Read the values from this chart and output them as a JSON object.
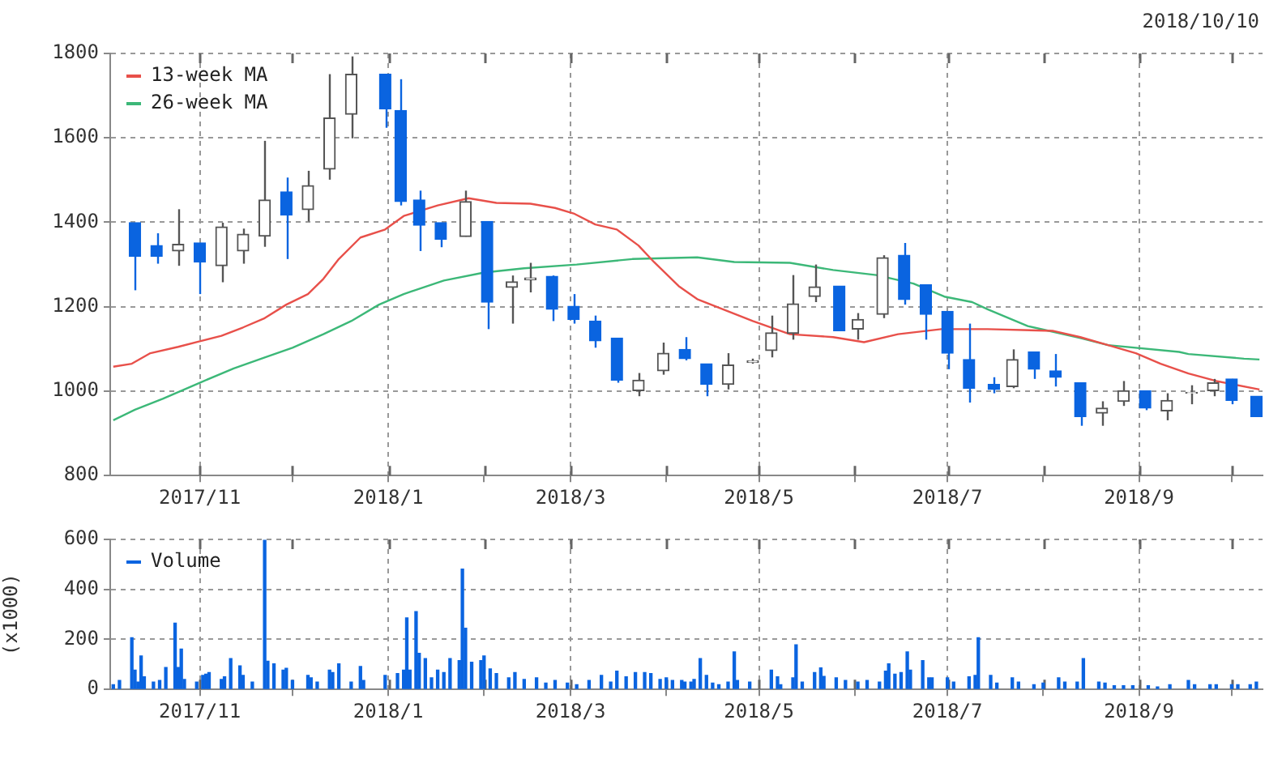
{
  "chart_data": [
    {
      "type": "candlestick",
      "annotations": [
        "2018/10/10"
      ],
      "legend": "top left",
      "grid": true,
      "x": [
        "2017-10-11",
        "2017-10-18",
        "2017-10-25",
        "2017-11-01",
        "2017-11-08",
        "2017-11-15",
        "2017-11-22",
        "2017-11-29",
        "2017-12-06",
        "2017-12-13",
        "2017-12-20",
        "2017-12-31",
        "2018-01-05",
        "2018-01-11",
        "2018-01-18",
        "2018-01-26",
        "2018-02-02",
        "2018-02-10",
        "2018-02-16",
        "2018-02-23",
        "2018-03-02",
        "2018-03-09",
        "2018-03-16",
        "2018-03-23",
        "2018-03-31",
        "2018-04-07",
        "2018-04-14",
        "2018-04-21",
        "2018-04-29",
        "2018-05-05",
        "2018-05-12",
        "2018-05-19",
        "2018-05-27",
        "2018-06-02",
        "2018-06-10",
        "2018-06-17",
        "2018-06-24",
        "2018-07-01",
        "2018-07-08",
        "2018-07-16",
        "2018-07-22",
        "2018-07-29",
        "2018-08-05",
        "2018-08-13",
        "2018-08-20",
        "2018-08-27",
        "2018-09-03",
        "2018-09-10",
        "2018-09-18",
        "2018-09-25",
        "2018-10-01",
        "2018-10-09"
      ],
      "ohlc": [
        [
          1399,
          1399,
          1239,
          1319
        ],
        [
          1345,
          1374,
          1302,
          1319
        ],
        [
          1332,
          1431,
          1297,
          1348
        ],
        [
          1351,
          1351,
          1230,
          1306
        ],
        [
          1297,
          1399,
          1258,
          1389
        ],
        [
          1332,
          1385,
          1302,
          1372
        ],
        [
          1367,
          1593,
          1342,
          1453
        ],
        [
          1472,
          1506,
          1313,
          1417
        ],
        [
          1430,
          1522,
          1402,
          1487
        ],
        [
          1526,
          1751,
          1501,
          1647
        ],
        [
          1656,
          1793,
          1599,
          1751
        ],
        [
          1751,
          1751,
          1624,
          1669
        ],
        [
          1665,
          1739,
          1440,
          1449
        ],
        [
          1453,
          1475,
          1332,
          1393
        ],
        [
          1399,
          1399,
          1341,
          1360
        ],
        [
          1366,
          1475,
          1366,
          1449
        ],
        [
          1402,
          1402,
          1147,
          1211
        ],
        [
          1246,
          1274,
          1160,
          1259
        ],
        [
          1264,
          1304,
          1234,
          1268
        ],
        [
          1272,
          1274,
          1166,
          1194
        ],
        [
          1201,
          1230,
          1160,
          1170
        ],
        [
          1166,
          1179,
          1103,
          1119
        ],
        [
          1126,
          1126,
          1020,
          1026
        ],
        [
          1001,
          1043,
          988,
          1026
        ],
        [
          1048,
          1115,
          1039,
          1090
        ],
        [
          1099,
          1128,
          1073,
          1077
        ],
        [
          1065,
          1065,
          988,
          1016
        ],
        [
          1016,
          1090,
          1004,
          1062
        ],
        [
          1068,
          1077,
          1065,
          1072
        ],
        [
          1096,
          1179,
          1080,
          1138
        ],
        [
          1137,
          1275,
          1122,
          1207
        ],
        [
          1224,
          1300,
          1211,
          1247
        ],
        [
          1249,
          1249,
          1143,
          1143
        ],
        [
          1147,
          1185,
          1122,
          1170
        ],
        [
          1182,
          1322,
          1173,
          1316
        ],
        [
          1322,
          1351,
          1205,
          1217
        ],
        [
          1252,
          1252,
          1122,
          1182
        ],
        [
          1189,
          1189,
          1052,
          1090
        ],
        [
          1075,
          1160,
          973,
          1007
        ],
        [
          1016,
          1033,
          995,
          1004
        ],
        [
          1011,
          1099,
          1007,
          1075
        ],
        [
          1093,
          1093,
          1029,
          1052
        ],
        [
          1048,
          1088,
          1011,
          1033
        ],
        [
          1020,
          1020,
          918,
          940
        ],
        [
          948,
          976,
          918,
          960
        ],
        [
          976,
          1024,
          965,
          1001
        ],
        [
          1001,
          1001,
          955,
          960
        ],
        [
          953,
          995,
          931,
          978
        ],
        [
          995,
          1014,
          969,
          997
        ],
        [
          1001,
          1029,
          988,
          1020
        ],
        [
          1029,
          1029,
          969,
          978
        ],
        [
          988,
          988,
          940,
          940
        ]
      ],
      "series": [
        {
          "type": "line",
          "name": "13-week MA",
          "color": "#e8504a",
          "x": [
            "2017-10-04",
            "2017-10-10",
            "2017-10-16",
            "2017-10-25",
            "2017-11-01",
            "2017-11-08",
            "2017-11-15",
            "2017-11-22",
            "2017-11-29",
            "2017-12-06",
            "2017-12-11",
            "2017-12-16",
            "2017-12-23",
            "2017-12-31",
            "2018-01-06",
            "2018-01-17",
            "2018-01-27",
            "2018-02-05",
            "2018-02-16",
            "2018-02-24",
            "2018-03-02",
            "2018-03-09",
            "2018-03-16",
            "2018-03-23",
            "2018-03-28",
            "2018-04-05",
            "2018-04-11",
            "2018-04-18",
            "2018-04-29",
            "2018-05-11",
            "2018-05-25",
            "2018-06-04",
            "2018-06-15",
            "2018-06-29",
            "2018-07-14",
            "2018-08-04",
            "2018-08-13",
            "2018-08-22",
            "2018-08-31",
            "2018-09-08",
            "2018-09-17",
            "2018-09-26",
            "2018-10-10"
          ],
          "values": [
            1058,
            1065,
            1090,
            1105,
            1118,
            1131,
            1151,
            1173,
            1205,
            1230,
            1266,
            1313,
            1364,
            1383,
            1415,
            1440,
            1457,
            1446,
            1444,
            1434,
            1421,
            1395,
            1383,
            1345,
            1306,
            1249,
            1218,
            1198,
            1166,
            1135,
            1128,
            1116,
            1135,
            1147,
            1147,
            1143,
            1128,
            1109,
            1090,
            1065,
            1042,
            1024,
            1004
          ]
        },
        {
          "type": "line",
          "name": "26-week MA",
          "color": "#3cb878",
          "x": [
            "2017-10-04",
            "2017-10-11",
            "2017-10-20",
            "2017-11-01",
            "2017-11-12",
            "2017-11-22",
            "2017-12-01",
            "2017-12-11",
            "2017-12-20",
            "2017-12-29",
            "2018-01-06",
            "2018-01-19",
            "2018-02-01",
            "2018-02-14",
            "2018-03-03",
            "2018-03-21",
            "2018-04-11",
            "2018-04-23",
            "2018-05-11",
            "2018-05-25",
            "2018-06-08",
            "2018-06-20",
            "2018-06-30",
            "2018-07-09",
            "2018-07-14",
            "2018-07-27",
            "2018-08-13",
            "2018-08-22",
            "2018-09-14",
            "2018-09-17",
            "2018-10-05",
            "2018-10-10"
          ],
          "values": [
            931,
            956,
            982,
            1020,
            1054,
            1080,
            1103,
            1135,
            1166,
            1205,
            1230,
            1262,
            1281,
            1291,
            1300,
            1313,
            1317,
            1306,
            1304,
            1287,
            1275,
            1255,
            1224,
            1211,
            1194,
            1154,
            1126,
            1109,
            1093,
            1088,
            1077,
            1075
          ]
        }
      ],
      "xlim": [
        "2017-10-03",
        "2018-10-11"
      ],
      "xticks": [
        {
          "value": "2017-11-01",
          "label": "2017/11"
        },
        {
          "value": "2017-12-01",
          "label": null
        },
        {
          "value": "2018-01-01",
          "label": "2018/1"
        },
        {
          "value": "2018-02-01",
          "label": null
        },
        {
          "value": "2018-03-01",
          "label": "2018/3"
        },
        {
          "value": "2018-04-01",
          "label": null
        },
        {
          "value": "2018-05-01",
          "label": "2018/5"
        },
        {
          "value": "2018-06-01",
          "label": null
        },
        {
          "value": "2018-07-01",
          "label": "2018/7"
        },
        {
          "value": "2018-08-01",
          "label": null
        },
        {
          "value": "2018-09-01",
          "label": "2018/9"
        },
        {
          "value": "2018-10-01",
          "label": null
        }
      ],
      "ylim": [
        800,
        1800
      ],
      "yticks": [
        800,
        1000,
        1200,
        1400,
        1600,
        1800
      ]
    },
    {
      "type": "bar",
      "ylabel": "(x1000)",
      "legend": "top left",
      "grid": true,
      "x": [
        "2017-10-04",
        "2017-10-06",
        "2017-10-10",
        "2017-10-11",
        "2017-10-12",
        "2017-10-13",
        "2017-10-14",
        "2017-10-17",
        "2017-10-19",
        "2017-10-21",
        "2017-10-24",
        "2017-10-25",
        "2017-10-26",
        "2017-10-27",
        "2017-10-31",
        "2017-11-02",
        "2017-11-03",
        "2017-11-04",
        "2017-11-08",
        "2017-11-09",
        "2017-11-11",
        "2017-11-14",
        "2017-11-15",
        "2017-11-18",
        "2017-11-22",
        "2017-11-23",
        "2017-11-25",
        "2017-11-28",
        "2017-11-29",
        "2017-12-01",
        "2017-12-06",
        "2017-12-07",
        "2017-12-09",
        "2017-12-13",
        "2017-12-14",
        "2017-12-16",
        "2017-12-20",
        "2017-12-23",
        "2017-12-24",
        "2017-12-31",
        "2018-01-04",
        "2018-01-06",
        "2018-01-07",
        "2018-01-08",
        "2018-01-10",
        "2018-01-11",
        "2018-01-13",
        "2018-01-15",
        "2018-01-17",
        "2018-01-19",
        "2018-01-21",
        "2018-01-24",
        "2018-01-25",
        "2018-01-26",
        "2018-01-28",
        "2018-01-31",
        "2018-02-01",
        "2018-02-03",
        "2018-02-05",
        "2018-02-09",
        "2018-02-11",
        "2018-02-14",
        "2018-02-18",
        "2018-02-21",
        "2018-02-24",
        "2018-02-28",
        "2018-03-03",
        "2018-03-07",
        "2018-03-11",
        "2018-03-14",
        "2018-03-16",
        "2018-03-19",
        "2018-03-22",
        "2018-03-25",
        "2018-03-27",
        "2018-03-30",
        "2018-04-01",
        "2018-04-03",
        "2018-04-06",
        "2018-04-07",
        "2018-04-09",
        "2018-04-10",
        "2018-04-12",
        "2018-04-14",
        "2018-04-16",
        "2018-04-18",
        "2018-04-21",
        "2018-04-23",
        "2018-04-24",
        "2018-04-28",
        "2018-05-05",
        "2018-05-07",
        "2018-05-08",
        "2018-05-12",
        "2018-05-13",
        "2018-05-15",
        "2018-05-19",
        "2018-05-21",
        "2018-05-22",
        "2018-05-26",
        "2018-05-29",
        "2018-06-02",
        "2018-06-05",
        "2018-06-09",
        "2018-06-11",
        "2018-06-12",
        "2018-06-14",
        "2018-06-16",
        "2018-06-18",
        "2018-06-19",
        "2018-06-23",
        "2018-06-25",
        "2018-06-26",
        "2018-07-01",
        "2018-07-03",
        "2018-07-08",
        "2018-07-10",
        "2018-07-11",
        "2018-07-15",
        "2018-07-17",
        "2018-07-22",
        "2018-07-24",
        "2018-07-29",
        "2018-08-01",
        "2018-08-06",
        "2018-08-08",
        "2018-08-12",
        "2018-08-14",
        "2018-08-19",
        "2018-08-21",
        "2018-08-24",
        "2018-08-27",
        "2018-08-30",
        "2018-09-04",
        "2018-09-07",
        "2018-09-11",
        "2018-09-17",
        "2018-09-19",
        "2018-09-24",
        "2018-09-26",
        "2018-10-01",
        "2018-10-03",
        "2018-10-07",
        "2018-10-09"
      ],
      "series": [
        {
          "name": "Volume",
          "color": "#0a64e0",
          "values": [
            19,
            36,
            207,
            77,
            29,
            134,
            50,
            29,
            36,
            88,
            265,
            88,
            161,
            40,
            29,
            56,
            61,
            67,
            40,
            50,
            123,
            94,
            56,
            29,
            596,
            113,
            102,
            77,
            84,
            36,
            56,
            46,
            29,
            77,
            67,
            102,
            29,
            92,
            36,
            56,
            63,
            77,
            286,
            77,
            311,
            144,
            123,
            46,
            77,
            67,
            123,
            115,
            481,
            245,
            109,
            115,
            134,
            82,
            63,
            46,
            67,
            40,
            46,
            25,
            36,
            25,
            19,
            36,
            56,
            29,
            73,
            50,
            67,
            67,
            63,
            40,
            46,
            36,
            36,
            29,
            29,
            40,
            123,
            56,
            25,
            19,
            29,
            150,
            36,
            29,
            77,
            50,
            19,
            46,
            178,
            29,
            67,
            86,
            52,
            46,
            36,
            29,
            36,
            29,
            73,
            102,
            61,
            67,
            150,
            77,
            115,
            46,
            46,
            46,
            29,
            50,
            56,
            207,
            56,
            25,
            46,
            29,
            19,
            25,
            46,
            29,
            29,
            123,
            29,
            25,
            15,
            15,
            15,
            15,
            10,
            19,
            36,
            19,
            19,
            19,
            19,
            19,
            19,
            29
          ]
        }
      ],
      "xlim": [
        "2017-10-03",
        "2018-10-11"
      ],
      "xticks": [
        {
          "value": "2017-11-01",
          "label": "2017/11"
        },
        {
          "value": "2017-12-01",
          "label": null
        },
        {
          "value": "2018-01-01",
          "label": "2018/1"
        },
        {
          "value": "2018-02-01",
          "label": null
        },
        {
          "value": "2018-03-01",
          "label": "2018/3"
        },
        {
          "value": "2018-04-01",
          "label": null
        },
        {
          "value": "2018-05-01",
          "label": "2018/5"
        },
        {
          "value": "2018-06-01",
          "label": null
        },
        {
          "value": "2018-07-01",
          "label": "2018/7"
        },
        {
          "value": "2018-08-01",
          "label": null
        },
        {
          "value": "2018-09-01",
          "label": "2018/9"
        },
        {
          "value": "2018-10-01",
          "label": null
        }
      ],
      "ylim": [
        0,
        600
      ],
      "yticks": [
        0,
        200,
        400,
        600
      ]
    }
  ]
}
